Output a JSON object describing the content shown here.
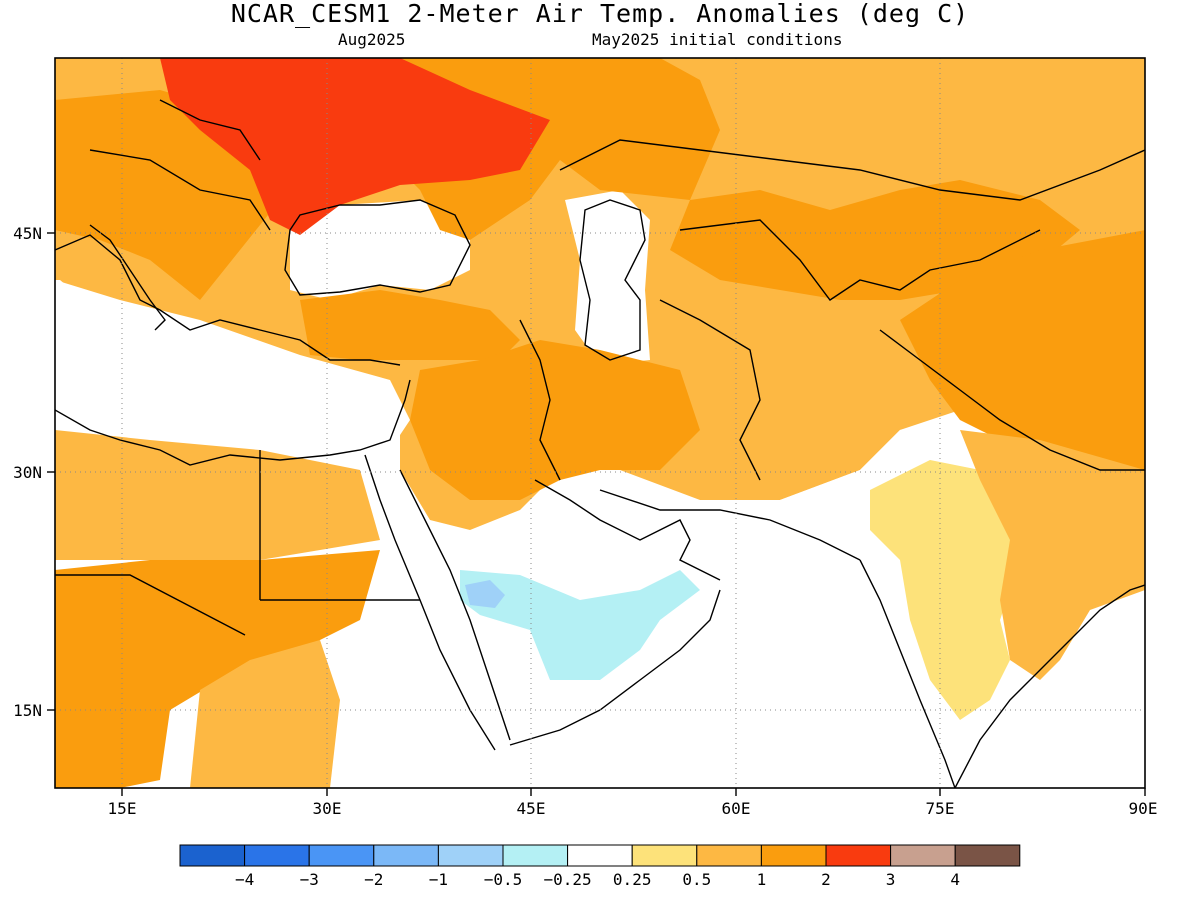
{
  "header": {
    "title": "NCAR_CESM1 2-Meter Air Temp. Anomalies (deg C)",
    "valid_month": "Aug2025",
    "init": "May2025 initial conditions"
  },
  "axes": {
    "lon_ticks": [
      "15E",
      "30E",
      "45E",
      "60E",
      "75E",
      "90E"
    ],
    "lat_ticks": [
      "45N",
      "30N",
      "15N"
    ]
  },
  "legend": {
    "colors": [
      "#1b62cf",
      "#2a74e8",
      "#4a95f5",
      "#7bb8f7",
      "#9fd1f8",
      "#b4f0f4",
      "#ffffff",
      "#fde27a",
      "#fdb843",
      "#fa9d0e",
      "#f93b0f",
      "#c8a08f",
      "#7a5446"
    ],
    "labels": [
      "−4",
      "−3",
      "−2",
      "−1",
      "−0.5",
      "−0.25",
      "0.25",
      "0.5",
      "1",
      "2",
      "3",
      "4"
    ]
  },
  "palette": {
    "white": "#ffffff",
    "light_blue": "#b4f0f4",
    "blue": "#9fd1f8",
    "pale_yellow": "#fde27a",
    "light_orange": "#fdb843",
    "orange": "#fa9d0e",
    "red": "#f93b0f"
  }
}
